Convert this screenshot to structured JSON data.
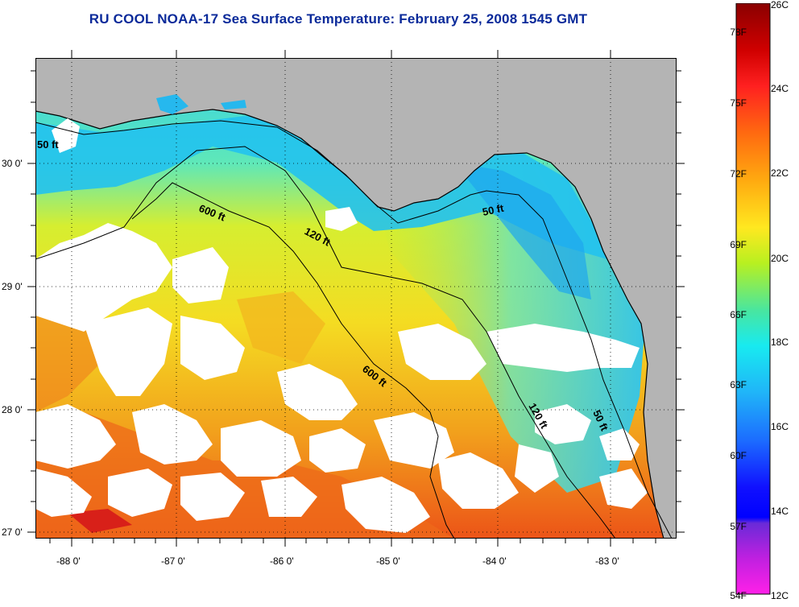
{
  "title": "RU COOL  NOAA-17  Sea Surface Temperature:  February 25, 2008 1545 GMT",
  "lat_ticks": [
    "30 0'",
    "29 0'",
    "28 0'",
    "27 0'"
  ],
  "lon_ticks": [
    "-88 0'",
    "-87 0'",
    "-86 0'",
    "-85 0'",
    "-84 0'",
    "-83 0'"
  ],
  "contours": [
    "50 ft",
    "600 ft",
    "120 ft",
    "50 ft",
    "600 ft",
    "120 ft",
    "50 ft"
  ],
  "colorbar": {
    "f_labels": [
      "78F",
      "75F",
      "72F",
      "69F",
      "66F",
      "63F",
      "60F",
      "57F",
      "54F"
    ],
    "c_labels": [
      "26C",
      "24C",
      "22C",
      "20C",
      "18C",
      "16C",
      "14C",
      "12C"
    ]
  },
  "colors": {
    "title": "#0a2a9a",
    "land": "#b4b4b4",
    "cloud": "#ffffff",
    "cold_water": "#26c6f0",
    "cool_water": "#4ee6c8",
    "mid_water": "#c6f03c",
    "warm_water": "#f6e628",
    "hot_water": "#f09a1e",
    "hotter_water": "#ec5a1a"
  }
}
